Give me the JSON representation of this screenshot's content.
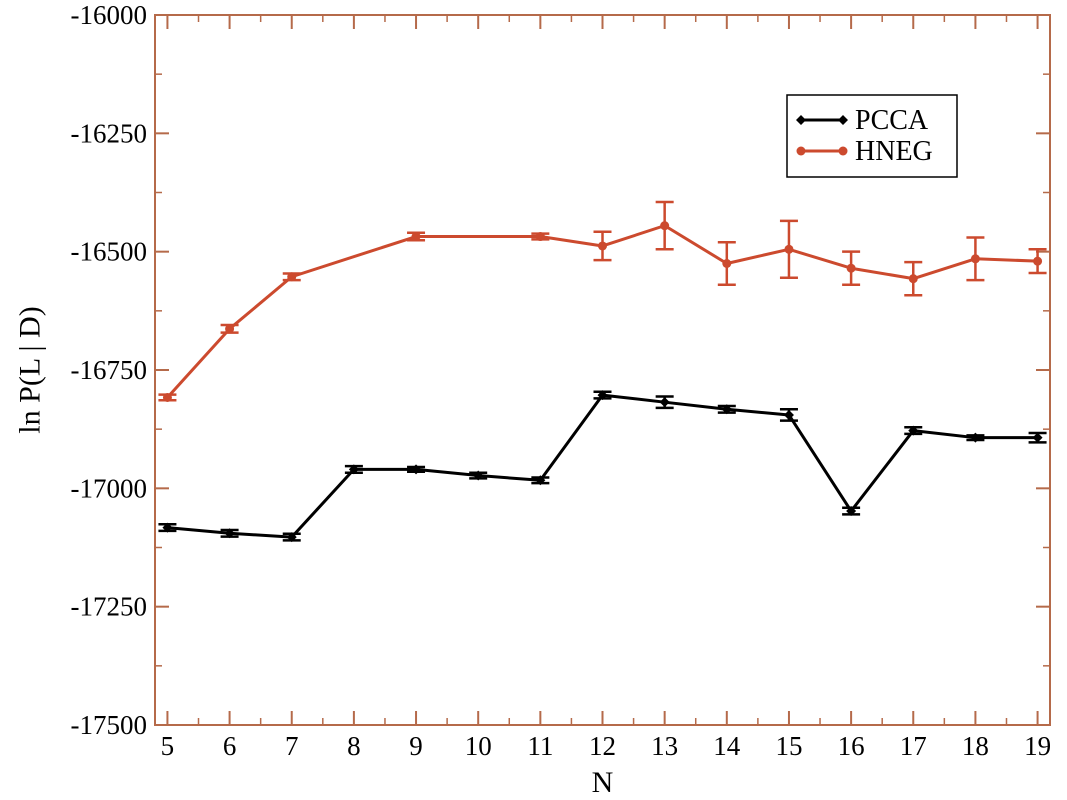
{
  "chart_data": {
    "type": "line",
    "title": "",
    "xlabel": "N",
    "ylabel": "ln P(L | D)",
    "xlim": [
      4.8,
      19.2
    ],
    "ylim": [
      -17500,
      -16000
    ],
    "xticks": [
      "5",
      "6",
      "7",
      "8",
      "9",
      "10",
      "11",
      "12",
      "13",
      "14",
      "15",
      "16",
      "17",
      "18",
      "19"
    ],
    "yticks": [
      "-16000",
      "-16250",
      "-16500",
      "-16750",
      "-17000",
      "-17250",
      "-17500"
    ],
    "grid": false,
    "legend_position": "top-right",
    "series": [
      {
        "name": "PCCA",
        "color": "#000000",
        "marker": "diamond",
        "x": [
          5,
          6,
          7,
          8,
          9,
          10,
          11,
          12,
          13,
          14,
          15,
          16,
          17,
          18,
          19
        ],
        "y": [
          -17083,
          -17095,
          -17103,
          -16960,
          -16960,
          -16973,
          -16983,
          -16803,
          -16818,
          -16833,
          -16845,
          -17048,
          -16878,
          -16893,
          -16893
        ],
        "yerr": [
          7,
          7,
          7,
          7,
          5,
          6,
          6,
          7,
          12,
          7,
          12,
          7,
          7,
          5,
          10
        ]
      },
      {
        "name": "HNEG",
        "color": "#cc4a2e",
        "marker": "circle",
        "x": [
          5,
          6,
          7,
          8,
          9,
          10,
          11,
          12,
          13,
          14,
          15,
          16,
          17,
          18,
          19
        ],
        "y": [
          -16808,
          -16663,
          -16553,
          null,
          -16468,
          null,
          -16468,
          -16488,
          -16445,
          -16525,
          -16495,
          -16535,
          -16557,
          -16515,
          -16520
        ],
        "yerr": [
          6,
          8,
          7,
          null,
          8,
          null,
          6,
          30,
          50,
          45,
          60,
          35,
          35,
          45,
          25
        ]
      }
    ]
  }
}
